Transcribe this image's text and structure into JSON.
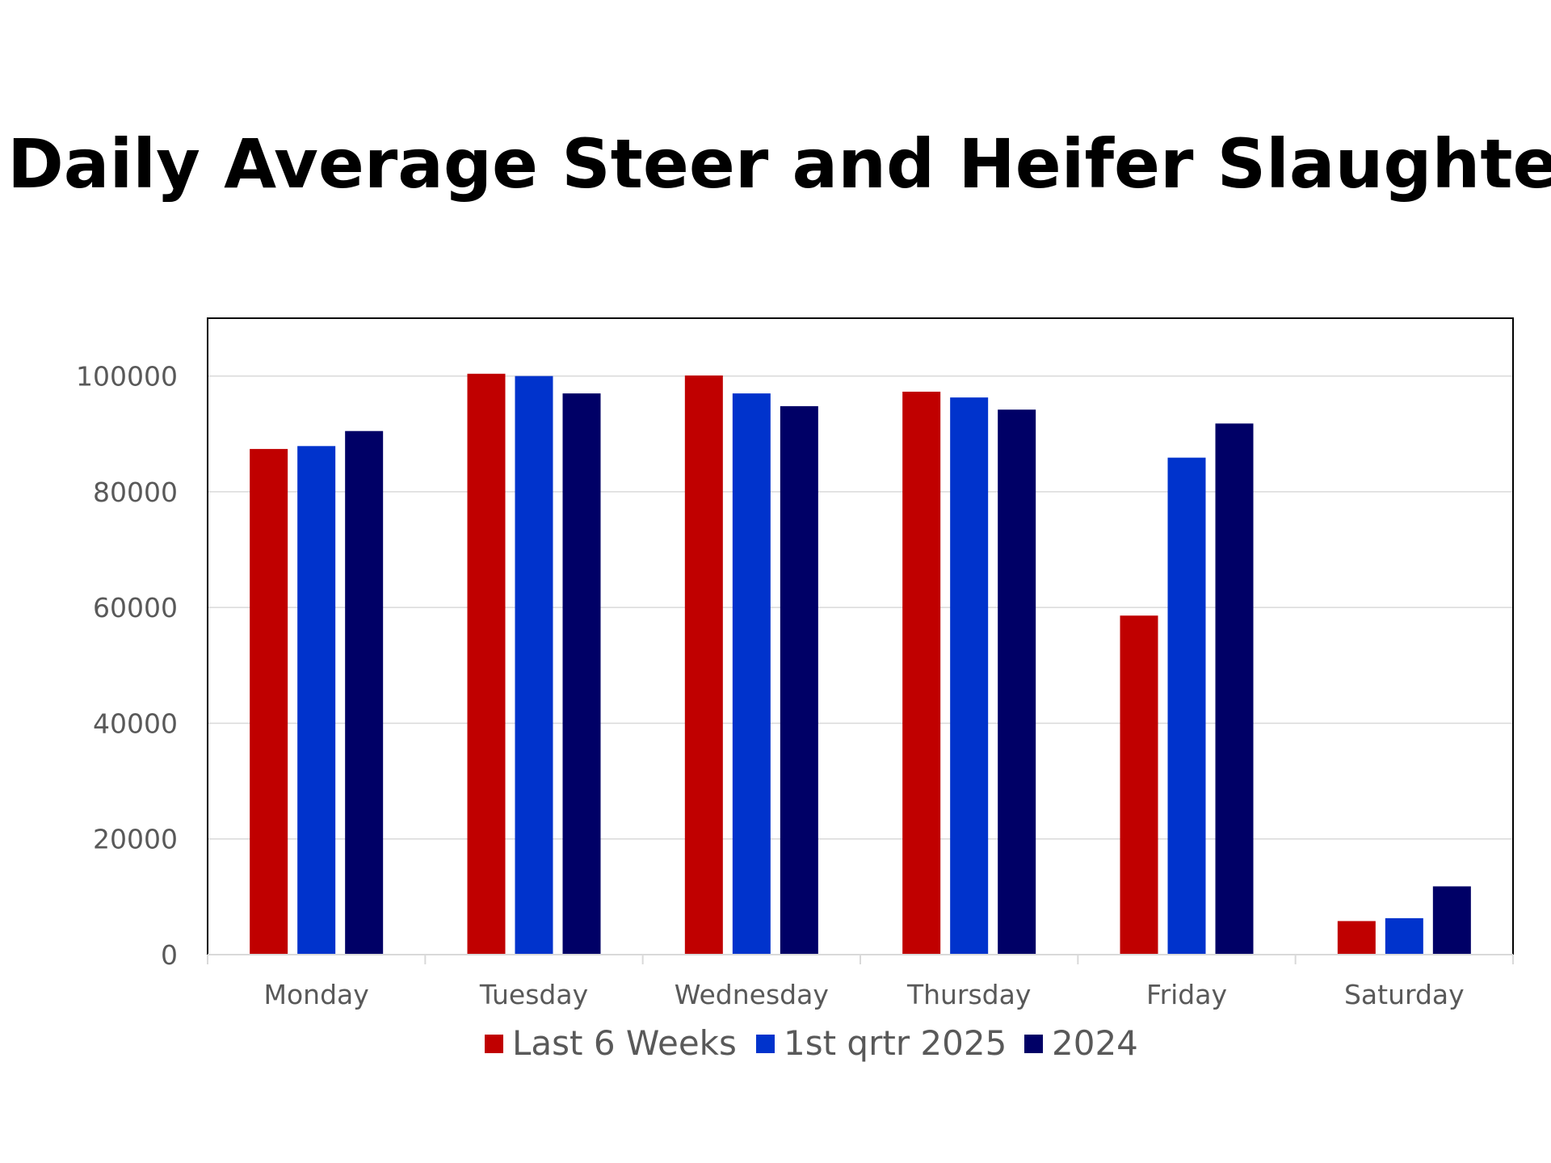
{
  "chart_data": {
    "type": "bar",
    "title": "Daily Average Steer and Heifer Slaughter",
    "xlabel": "",
    "ylabel": "",
    "categories": [
      "Monday",
      "Tuesday",
      "Wednesday",
      "Thursday",
      "Friday",
      "Saturday"
    ],
    "series": [
      {
        "name": "Last 6 Weeks",
        "color": "#C00000",
        "values": [
          87400,
          100400,
          100100,
          97300,
          58600,
          5800
        ]
      },
      {
        "name": "1st qrtr 2025",
        "color": "#0033CC",
        "values": [
          87900,
          100000,
          97000,
          96300,
          85900,
          6300
        ]
      },
      {
        "name": "2024",
        "color": "#000066",
        "values": [
          90500,
          97000,
          94800,
          94200,
          91800,
          11800
        ]
      }
    ],
    "ylim": [
      0,
      110000
    ],
    "yticks": [
      0,
      20000,
      40000,
      60000,
      80000,
      100000
    ],
    "grid": true,
    "legend_position": "bottom"
  }
}
